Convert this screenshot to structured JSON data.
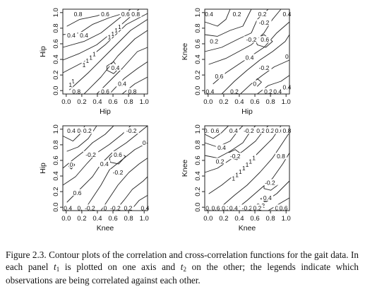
{
  "figure": {
    "caption": {
      "prefix": "Figure 2.3. Contour plots of the correlation and cross-correlation functions for the gait data. In each panel ",
      "var1": "t",
      "sub1": "1",
      "mid": " is plotted on one axis and ",
      "var2": "t",
      "sub2": "2",
      "suffix": " on the other; the legends indicate which observations are being correlated against each other."
    }
  },
  "chart_data": [
    {
      "type": "contour",
      "panel": "top-left",
      "xlabel": "Hip",
      "ylabel": "Hip",
      "xlim": [
        0,
        1
      ],
      "ylim": [
        0,
        1
      ],
      "x_ticks": [
        "0.0",
        "0.2",
        "0.4",
        "0.6",
        "0.8",
        "1.0"
      ],
      "y_ticks": [
        "0.0",
        "0.2",
        "0.4",
        "0.6",
        "0.8",
        "1.0"
      ],
      "contour_labels": [
        {
          "text": "0.8",
          "x": 0.18,
          "y": 0.94
        },
        {
          "text": "0.6",
          "x": 0.5,
          "y": 0.94
        },
        {
          "text": "0.6",
          "x": 0.74,
          "y": 0.94
        },
        {
          "text": "0.8",
          "x": 0.86,
          "y": 0.94
        },
        {
          "text": "0.4",
          "x": 0.1,
          "y": 0.69
        },
        {
          "text": "0.4",
          "x": 0.25,
          "y": 0.69
        },
        {
          "text": "0.4",
          "x": 0.62,
          "y": 0.31
        },
        {
          "text": "0.4",
          "x": 0.7,
          "y": 0.12
        },
        {
          "text": "0.8",
          "x": 0.16,
          "y": 0.03
        },
        {
          "text": "0.6",
          "x": 0.5,
          "y": 0.03
        },
        {
          "text": "0.8",
          "x": 0.82,
          "y": 0.03
        },
        {
          "text": "1",
          "x": 0.67,
          "y": 0.79
        },
        {
          "text": "1",
          "x": 0.63,
          "y": 0.75
        },
        {
          "text": "1",
          "x": 0.59,
          "y": 0.71
        },
        {
          "text": "1",
          "x": 0.55,
          "y": 0.67
        },
        {
          "text": "1",
          "x": 0.37,
          "y": 0.47
        },
        {
          "text": "1",
          "x": 0.33,
          "y": 0.43
        },
        {
          "text": "1",
          "x": 0.29,
          "y": 0.39
        },
        {
          "text": "1",
          "x": 0.25,
          "y": 0.34
        },
        {
          "text": "1",
          "x": 0.12,
          "y": 0.15
        },
        {
          "text": "1",
          "x": 0.09,
          "y": 0.11
        }
      ]
    },
    {
      "type": "contour",
      "panel": "top-right",
      "xlabel": "Hip",
      "ylabel": "Knee",
      "xlim": [
        0,
        1
      ],
      "ylim": [
        0,
        1
      ],
      "x_ticks": [
        "0.0",
        "0.2",
        "0.4",
        "0.6",
        "0.8",
        "1.0"
      ],
      "y_ticks": [
        "0.0",
        "0.2",
        "0.4",
        "0.6",
        "0.8",
        "1.0"
      ],
      "contour_labels": [
        {
          "text": "0.4",
          "x": 0.05,
          "y": 0.94
        },
        {
          "text": "0.2",
          "x": 0.38,
          "y": 0.94
        },
        {
          "text": "0.2",
          "x": 0.68,
          "y": 0.94
        },
        {
          "text": "0.4",
          "x": 0.97,
          "y": 0.94
        },
        {
          "text": "-0.2",
          "x": 0.7,
          "y": 0.84
        },
        {
          "text": "0.2",
          "x": 0.11,
          "y": 0.62
        },
        {
          "text": "-0.2",
          "x": 0.55,
          "y": 0.64
        },
        {
          "text": "0.6",
          "x": 0.71,
          "y": 0.64
        },
        {
          "text": "0",
          "x": 0.97,
          "y": 0.44
        },
        {
          "text": "0.4",
          "x": 0.53,
          "y": 0.43
        },
        {
          "text": "-0.2",
          "x": 0.7,
          "y": 0.31
        },
        {
          "text": "0.6",
          "x": 0.17,
          "y": 0.21
        },
        {
          "text": "0",
          "x": 0.59,
          "y": 0.12
        },
        {
          "text": "-0.4",
          "x": 0.05,
          "y": 0.03
        },
        {
          "text": "0.2",
          "x": 0.35,
          "y": 0.03
        },
        {
          "text": "0.2",
          "x": 0.75,
          "y": 0.03
        },
        {
          "text": "0.4",
          "x": 0.86,
          "y": 0.03
        },
        {
          "text": "0.4",
          "x": 0.97,
          "y": 0.08
        }
      ]
    },
    {
      "type": "contour",
      "panel": "bottom-left",
      "xlabel": "Knee",
      "ylabel": "Hip",
      "xlim": [
        0,
        1
      ],
      "ylim": [
        0,
        1
      ],
      "x_ticks": [
        "0.0",
        "0.2",
        "0.4",
        "0.6",
        "0.8",
        "1.0"
      ],
      "y_ticks": [
        "0.0",
        "0.2",
        "0.4",
        "0.6",
        "0.8",
        "1.0"
      ],
      "contour_labels": [
        {
          "text": "0.4",
          "x": 0.1,
          "y": 0.94
        },
        {
          "text": "0",
          "x": 0.19,
          "y": 0.94
        },
        {
          "text": "0.2",
          "x": 0.29,
          "y": 0.94
        },
        {
          "text": "-0.2",
          "x": 0.81,
          "y": 0.94
        },
        {
          "text": "0",
          "x": 0.96,
          "y": 0.8
        },
        {
          "text": "-0.2",
          "x": 0.33,
          "y": 0.66
        },
        {
          "text": "0.6",
          "x": 0.65,
          "y": 0.66
        },
        {
          "text": "0",
          "x": 0.1,
          "y": 0.54
        },
        {
          "text": "0.4",
          "x": 0.49,
          "y": 0.55
        },
        {
          "text": "-0.2",
          "x": 0.65,
          "y": 0.45
        },
        {
          "text": "0.6",
          "x": 0.17,
          "y": 0.21
        },
        {
          "text": "0.4",
          "x": 0.06,
          "y": 0.03
        },
        {
          "text": "0.2",
          "x": 0.22,
          "y": 0.03
        },
        {
          "text": "-0.2",
          "x": 0.32,
          "y": 0.03
        },
        {
          "text": "0",
          "x": 0.5,
          "y": 0.03
        },
        {
          "text": "-0.2",
          "x": 0.62,
          "y": 0.03
        },
        {
          "text": "0.2",
          "x": 0.77,
          "y": 0.03
        },
        {
          "text": "0.4",
          "x": 0.97,
          "y": 0.03
        }
      ]
    },
    {
      "type": "contour",
      "panel": "bottom-right",
      "xlabel": "Knee",
      "ylabel": "Knee",
      "xlim": [
        0,
        1
      ],
      "ylim": [
        0,
        1
      ],
      "x_ticks": [
        "0.0",
        "0.2",
        "0.4",
        "0.6",
        "0.8",
        "1.0"
      ],
      "y_ticks": [
        "0.0",
        "0.2",
        "0.4",
        "0.6",
        "0.8",
        "1.0"
      ],
      "contour_labels": [
        {
          "text": "0.8",
          "x": 0.04,
          "y": 0.94
        },
        {
          "text": "0.6",
          "x": 0.12,
          "y": 0.94
        },
        {
          "text": "0.4",
          "x": 0.34,
          "y": 0.94
        },
        {
          "text": "-0.2",
          "x": 0.52,
          "y": 0.94
        },
        {
          "text": "0.2",
          "x": 0.66,
          "y": 0.94
        },
        {
          "text": "0.2",
          "x": 0.77,
          "y": 0.94
        },
        {
          "text": "0.6",
          "x": 0.88,
          "y": 0.94
        },
        {
          "text": "0.8",
          "x": 0.97,
          "y": 0.94
        },
        {
          "text": "0.4",
          "x": 0.2,
          "y": 0.74
        },
        {
          "text": "-0.2",
          "x": 0.36,
          "y": 0.64
        },
        {
          "text": "0.2",
          "x": 0.18,
          "y": 0.58
        },
        {
          "text": "-0.2",
          "x": 0.77,
          "y": 0.33
        },
        {
          "text": "0.4",
          "x": 0.74,
          "y": 0.15
        },
        {
          "text": "0.2",
          "x": 0.66,
          "y": 0.06
        },
        {
          "text": "0.8",
          "x": 0.06,
          "y": 0.03
        },
        {
          "text": "0.6",
          "x": 0.13,
          "y": 0.03
        },
        {
          "text": "0.2",
          "x": 0.25,
          "y": 0.03
        },
        {
          "text": "0.4",
          "x": 0.34,
          "y": 0.03
        },
        {
          "text": "-0.2",
          "x": 0.5,
          "y": 0.03
        },
        {
          "text": "0.2",
          "x": 0.62,
          "y": 0.03
        },
        {
          "text": "0.4",
          "x": 0.88,
          "y": 0.03
        },
        {
          "text": "0.6",
          "x": 0.93,
          "y": 0.03
        },
        {
          "text": "1",
          "x": 0.34,
          "y": 0.38
        },
        {
          "text": "1",
          "x": 0.38,
          "y": 0.42
        },
        {
          "text": "1",
          "x": 0.42,
          "y": 0.46
        },
        {
          "text": "1",
          "x": 0.46,
          "y": 0.5
        },
        {
          "text": "1",
          "x": 0.5,
          "y": 0.54
        },
        {
          "text": "1",
          "x": 0.54,
          "y": 0.58
        },
        {
          "text": "1",
          "x": 0.58,
          "y": 0.62
        },
        {
          "text": "0.8",
          "x": 0.9,
          "y": 0.64
        }
      ]
    }
  ]
}
